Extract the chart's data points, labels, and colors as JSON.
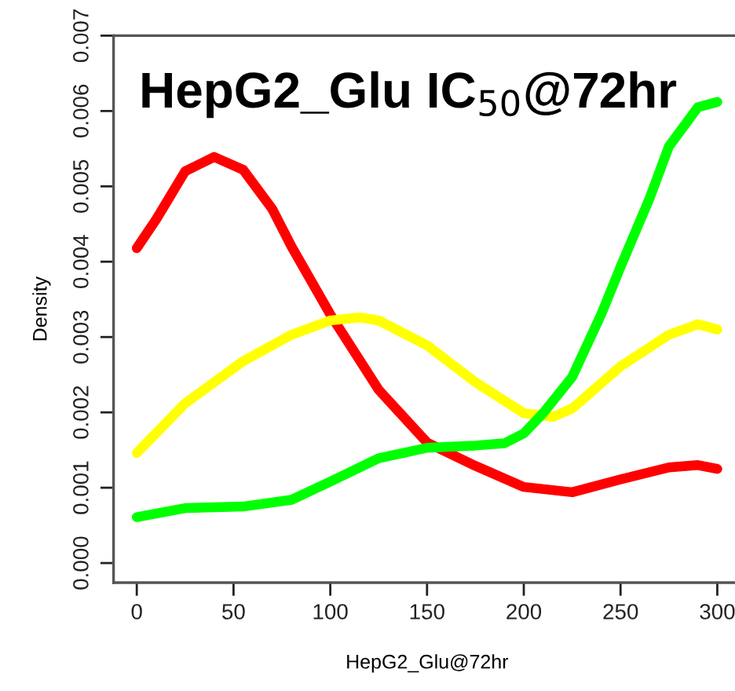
{
  "chart_data": {
    "type": "line",
    "title": "HepG2_Glu IC$_{50}$@72hr",
    "xlabel": "HepG2_Glu@72hr",
    "ylabel": "Density",
    "x": [
      0,
      10,
      25,
      40,
      55,
      70,
      80,
      100,
      115,
      125,
      150,
      175,
      190,
      200,
      210,
      215,
      225,
      240,
      250,
      265,
      275,
      290,
      300
    ],
    "series": [
      {
        "color": "#ff0000",
        "values": [
          0.00418,
          0.00456,
          0.0052,
          0.00539,
          0.00522,
          0.0047,
          0.0042,
          0.0033,
          null,
          0.0023,
          0.0016,
          0.00129,
          null,
          0.00101,
          null,
          null,
          0.00094,
          null,
          0.00111,
          null,
          0.00127,
          0.0013,
          0.00125
        ]
      },
      {
        "color": "#ffff00",
        "values": [
          0.00146,
          null,
          0.00212,
          null,
          0.00268,
          null,
          0.00303,
          0.00322,
          0.00326,
          0.00322,
          0.00289,
          0.0024,
          null,
          0.00199,
          null,
          0.00194,
          0.00205,
          null,
          0.00261,
          null,
          0.00303,
          0.00317,
          0.0031
        ]
      },
      {
        "color": "#00ff00",
        "values": [
          0.00061,
          null,
          0.00073,
          null,
          0.00075,
          null,
          0.00084,
          0.00108,
          null,
          0.00139,
          0.00153,
          0.00156,
          0.00159,
          0.00172,
          0.00199,
          null,
          0.00247,
          0.0033,
          0.00393,
          0.00484,
          0.00553,
          0.00605,
          0.00612
        ]
      }
    ],
    "xlim": [
      -12,
      312
    ],
    "ylim": [
      -0.00026,
      0.007
    ],
    "xticks": [
      0,
      50,
      100,
      150,
      200,
      250,
      300
    ],
    "yticks": [
      {
        "value": 0,
        "label": "0.000"
      },
      {
        "value": 0.001,
        "label": "0.001"
      },
      {
        "value": 0.002,
        "label": "0.002"
      },
      {
        "value": 0.003,
        "label": "0.003"
      },
      {
        "value": 0.004,
        "label": "0.004"
      },
      {
        "value": 0.005,
        "label": "0.005"
      },
      {
        "value": 0.006,
        "label": "0.006"
      },
      {
        "value": 0.007,
        "label": "0.007"
      }
    ],
    "grid": false,
    "legend": false,
    "marker": "none",
    "line_style": "solid"
  }
}
